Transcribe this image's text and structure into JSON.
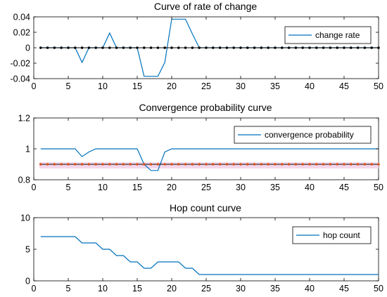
{
  "colors": {
    "series": "#0072BD",
    "marker": "#000000",
    "marker_red": "#D95319",
    "band": "#F4D6EC"
  },
  "chart_data": [
    {
      "type": "line",
      "title": "Curve of rate of change",
      "xlim": [
        0,
        50
      ],
      "ylim": [
        -0.04,
        0.04
      ],
      "xticks": [
        0,
        5,
        10,
        15,
        20,
        25,
        30,
        35,
        40,
        45,
        50
      ],
      "yticks": [
        -0.04,
        -0.02,
        0,
        0.02,
        0.04
      ],
      "xticklabels": [
        "0",
        "5",
        "10",
        "15",
        "20",
        "25",
        "30",
        "35",
        "40",
        "45",
        "50"
      ],
      "yticklabels": [
        "-0.04",
        "-0.02",
        "0",
        "0.02",
        "0.04"
      ],
      "legend": "top-right",
      "x": [
        1,
        2,
        3,
        4,
        5,
        6,
        7,
        8,
        9,
        10,
        11,
        12,
        13,
        14,
        15,
        16,
        17,
        18,
        19,
        20,
        21,
        22,
        23,
        24,
        25,
        26,
        27,
        28,
        29,
        30,
        31,
        32,
        33,
        34,
        35,
        36,
        37,
        38,
        39,
        40,
        41,
        42,
        43,
        44,
        45,
        46,
        47,
        48,
        49,
        50
      ],
      "series": [
        {
          "name": "change rate",
          "style": "line",
          "values": [
            0,
            0,
            0,
            0,
            0,
            0,
            -0.019,
            0,
            0,
            0,
            0.019,
            0,
            0,
            0,
            0,
            -0.037,
            -0.037,
            -0.037,
            -0.019,
            0.037,
            0.037,
            0.037,
            0.018,
            0,
            0,
            0,
            0,
            0,
            0,
            0,
            0,
            0,
            0,
            0,
            0,
            0,
            0,
            0,
            0,
            0,
            0,
            0,
            0,
            0,
            0,
            0,
            0,
            0,
            0,
            0
          ]
        },
        {
          "style": "markers",
          "values": [
            0,
            0,
            0,
            0,
            0,
            0,
            0,
            0,
            0,
            0,
            0,
            0,
            0,
            0,
            0,
            0,
            0,
            0,
            0,
            0,
            0,
            0,
            0,
            0,
            0,
            0,
            0,
            0,
            0,
            0,
            0,
            0,
            0,
            0,
            0,
            0,
            0,
            0,
            0,
            0,
            0,
            0,
            0,
            0,
            0,
            0,
            0,
            0,
            0,
            0
          ]
        }
      ]
    },
    {
      "type": "line",
      "title": "Convergence probability curve",
      "xlim": [
        0,
        50
      ],
      "ylim": [
        0.8,
        1.2
      ],
      "xticks": [
        0,
        5,
        10,
        15,
        20,
        25,
        30,
        35,
        40,
        45,
        50
      ],
      "yticks": [
        0.8,
        1,
        1.2
      ],
      "xticklabels": [
        "0",
        "5",
        "10",
        "15",
        "20",
        "25",
        "30",
        "35",
        "40",
        "45",
        "50"
      ],
      "yticklabels": [
        "0.8",
        "1",
        "1.2"
      ],
      "legend": "top-right",
      "x": [
        1,
        2,
        3,
        4,
        5,
        6,
        7,
        8,
        9,
        10,
        11,
        12,
        13,
        14,
        15,
        16,
        17,
        18,
        19,
        20,
        21,
        22,
        23,
        24,
        25,
        26,
        27,
        28,
        29,
        30,
        31,
        32,
        33,
        34,
        35,
        36,
        37,
        38,
        39,
        40,
        41,
        42,
        43,
        44,
        45,
        46,
        47,
        48,
        49,
        50
      ],
      "series": [
        {
          "name": "convergence probability",
          "style": "line",
          "values": [
            1,
            1,
            1,
            1,
            1,
            1,
            0.95,
            0.98,
            1,
            1,
            1,
            1,
            1,
            1,
            1,
            0.9,
            0.86,
            0.86,
            0.98,
            1,
            1,
            1,
            1,
            1,
            1,
            1,
            1,
            1,
            1,
            1,
            1,
            1,
            1,
            1,
            1,
            1,
            1,
            1,
            1,
            1,
            1,
            1,
            1,
            1,
            1,
            1,
            1,
            1,
            1,
            1
          ]
        },
        {
          "style": "markers",
          "values": [
            0.9,
            0.9,
            0.9,
            0.9,
            0.9,
            0.9,
            0.9,
            0.9,
            0.9,
            0.9,
            0.9,
            0.9,
            0.9,
            0.9,
            0.9,
            0.9,
            0.9,
            0.9,
            0.9,
            0.9,
            0.9,
            0.9,
            0.9,
            0.9,
            0.9,
            0.9,
            0.9,
            0.9,
            0.9,
            0.9,
            0.9,
            0.9,
            0.9,
            0.9,
            0.9,
            0.9,
            0.9,
            0.9,
            0.9,
            0.9,
            0.9,
            0.9,
            0.9,
            0.9,
            0.9,
            0.9,
            0.9,
            0.9,
            0.9,
            0.9
          ]
        }
      ]
    },
    {
      "type": "line",
      "title": "Hop count curve",
      "xlim": [
        0,
        50
      ],
      "ylim": [
        0,
        10
      ],
      "xticks": [
        0,
        5,
        10,
        15,
        20,
        25,
        30,
        35,
        40,
        45,
        50
      ],
      "yticks": [
        0,
        5,
        10
      ],
      "xticklabels": [
        "0",
        "5",
        "10",
        "15",
        "20",
        "25",
        "30",
        "35",
        "40",
        "45",
        "50"
      ],
      "yticklabels": [
        "0",
        "5",
        "10"
      ],
      "legend": "top-right",
      "x": [
        1,
        2,
        3,
        4,
        5,
        6,
        7,
        8,
        9,
        10,
        11,
        12,
        13,
        14,
        15,
        16,
        17,
        18,
        19,
        20,
        21,
        22,
        23,
        24,
        25,
        26,
        27,
        28,
        29,
        30,
        31,
        32,
        33,
        34,
        35,
        36,
        37,
        38,
        39,
        40,
        41,
        42,
        43,
        44,
        45,
        46,
        47,
        48,
        49,
        50
      ],
      "series": [
        {
          "name": "hop count",
          "style": "line",
          "values": [
            7,
            7,
            7,
            7,
            7,
            7,
            6,
            6,
            6,
            5,
            5,
            4,
            4,
            3,
            3,
            2,
            2,
            3,
            3,
            3,
            3,
            2,
            2,
            1,
            1,
            1,
            1,
            1,
            1,
            1,
            1,
            1,
            1,
            1,
            1,
            1,
            1,
            1,
            1,
            1,
            1,
            1,
            1,
            1,
            1,
            1,
            1,
            1,
            1,
            1
          ]
        }
      ]
    }
  ]
}
